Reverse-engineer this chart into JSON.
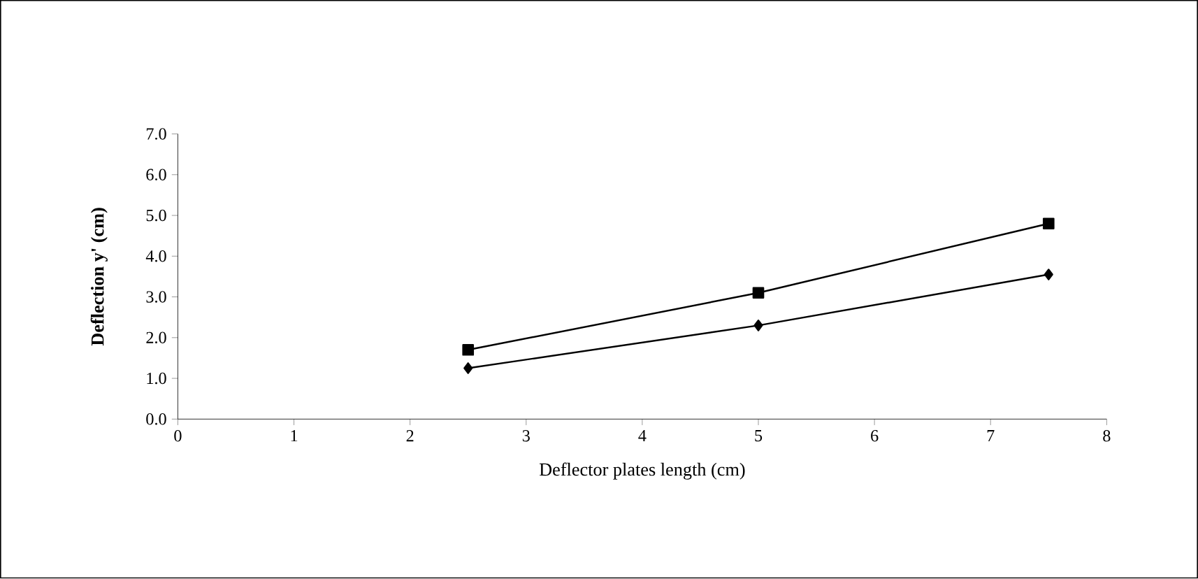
{
  "chart_data": {
    "type": "line",
    "xlabel": "Deflector plates length (cm)",
    "ylabel": "Deflection y' (cm)",
    "xlim": [
      0,
      8
    ],
    "xticks": [
      0,
      1,
      2,
      3,
      4,
      5,
      6,
      7,
      8
    ],
    "ylim": [
      0,
      7
    ],
    "yticks": [
      {
        "value": 0,
        "label": "0.0"
      },
      {
        "value": 1,
        "label": "1.0"
      },
      {
        "value": 2,
        "label": "2.0"
      },
      {
        "value": 3,
        "label": "3.0"
      },
      {
        "value": 4,
        "label": "4.0"
      },
      {
        "value": 5,
        "label": "5.0"
      },
      {
        "value": 6,
        "label": "6.0"
      },
      {
        "value": 7,
        "label": "7.0"
      }
    ],
    "x": [
      2.5,
      5,
      7.5
    ],
    "line_style": "solid",
    "series": [
      {
        "color": "#000000",
        "marker": "square",
        "values": [
          1.7,
          3.1,
          4.8
        ]
      },
      {
        "color": "#000000",
        "marker": "diamond",
        "values": [
          1.25,
          2.3,
          3.55
        ]
      }
    ]
  }
}
